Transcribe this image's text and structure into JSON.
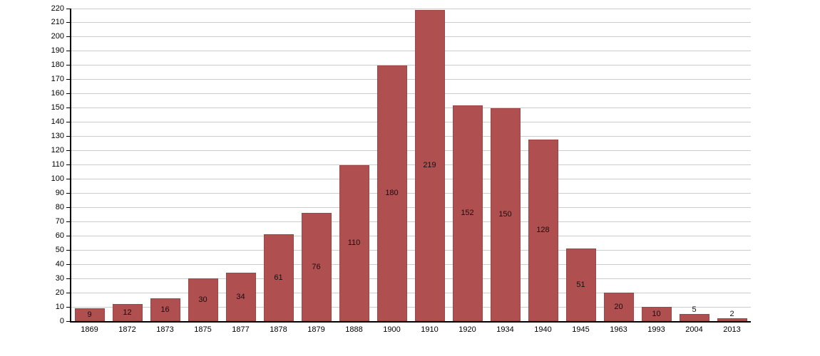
{
  "chart_data": {
    "type": "bar",
    "title": "",
    "xlabel": "",
    "ylabel": "",
    "categories": [
      "1869",
      "1872",
      "1873",
      "1875",
      "1877",
      "1878",
      "1879",
      "1888",
      "1900",
      "1910",
      "1920",
      "1934",
      "1940",
      "1945",
      "1963",
      "1993",
      "2004",
      "2013"
    ],
    "values": [
      9,
      12,
      16,
      30,
      34,
      61,
      76,
      110,
      180,
      219,
      152,
      150,
      128,
      51,
      20,
      10,
      5,
      2
    ],
    "ylim": [
      0,
      220
    ],
    "yticks": [
      0,
      10,
      20,
      30,
      40,
      50,
      60,
      70,
      80,
      90,
      100,
      110,
      120,
      130,
      140,
      150,
      160,
      170,
      180,
      190,
      200,
      210,
      220
    ],
    "grid": true,
    "legend": "none",
    "colors": {
      "bar_fill": "#b04f4f",
      "bar_border": "#9e4545",
      "gridline": "#cccccc",
      "axis": "#000000",
      "tick_label": "#000000",
      "value_label": "#111111"
    }
  }
}
